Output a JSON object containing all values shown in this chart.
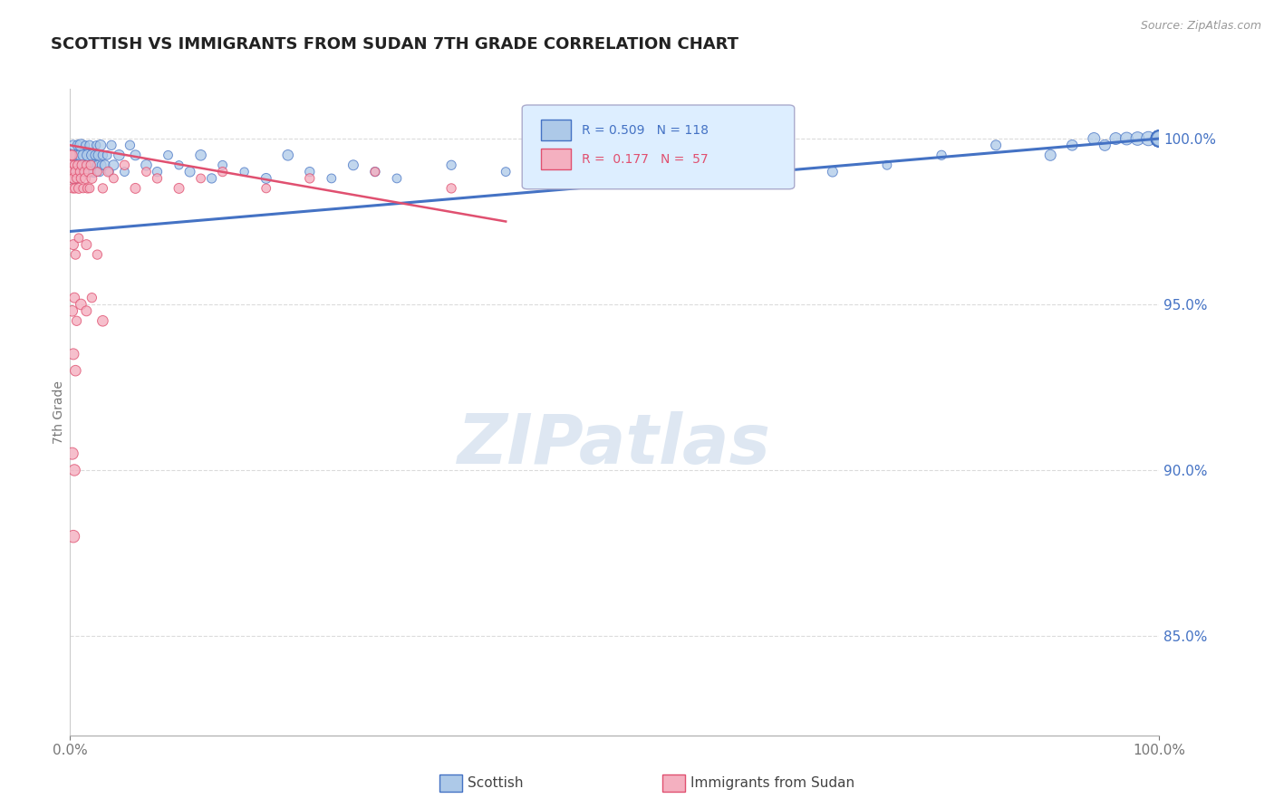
{
  "title": "SCOTTISH VS IMMIGRANTS FROM SUDAN 7TH GRADE CORRELATION CHART",
  "source_text": "Source: ZipAtlas.com",
  "ylabel": "7th Grade",
  "x_min": 0.0,
  "x_max": 100.0,
  "y_min": 82.0,
  "y_max": 101.5,
  "ytick_labels": [
    "85.0%",
    "90.0%",
    "95.0%",
    "100.0%"
  ],
  "ytick_values": [
    85.0,
    90.0,
    95.0,
    100.0
  ],
  "blue_series": {
    "name": "Scottish",
    "color": "#adc9e8",
    "edge_color": "#4472c4",
    "R": 0.509,
    "N": 118,
    "x": [
      0.1,
      0.2,
      0.3,
      0.4,
      0.5,
      0.6,
      0.7,
      0.8,
      0.9,
      1.0,
      1.1,
      1.2,
      1.3,
      1.4,
      1.5,
      1.6,
      1.7,
      1.8,
      1.9,
      2.0,
      2.1,
      2.2,
      2.3,
      2.4,
      2.5,
      2.6,
      2.7,
      2.8,
      2.9,
      3.0,
      3.2,
      3.4,
      3.6,
      3.8,
      4.0,
      4.5,
      5.0,
      5.5,
      6.0,
      7.0,
      8.0,
      9.0,
      10.0,
      11.0,
      12.0,
      13.0,
      14.0,
      16.0,
      18.0,
      20.0,
      22.0,
      24.0,
      26.0,
      28.0,
      30.0,
      35.0,
      40.0,
      45.0,
      50.0,
      55.0,
      60.0,
      65.0,
      70.0,
      75.0,
      80.0,
      85.0,
      90.0,
      92.0,
      94.0,
      95.0,
      96.0,
      97.0,
      98.0,
      99.0,
      100.0,
      100.0,
      100.0,
      100.0,
      100.0,
      100.0,
      100.0,
      100.0,
      100.0,
      100.0,
      100.0,
      100.0,
      100.0,
      100.0,
      100.0,
      100.0,
      100.0,
      100.0,
      100.0,
      100.0,
      100.0,
      100.0,
      100.0,
      100.0,
      100.0,
      100.0,
      100.0,
      100.0,
      100.0,
      100.0,
      100.0,
      100.0,
      100.0,
      100.0,
      100.0,
      100.0,
      100.0,
      100.0,
      100.0,
      100.0,
      100.0,
      100.0,
      100.0,
      100.0
    ],
    "y": [
      99.5,
      99.2,
      99.8,
      98.8,
      99.5,
      99.0,
      99.8,
      99.2,
      99.5,
      99.8,
      99.0,
      99.5,
      99.2,
      99.8,
      99.0,
      99.5,
      99.2,
      99.8,
      99.0,
      99.5,
      99.2,
      99.0,
      99.5,
      99.8,
      99.2,
      99.5,
      99.0,
      99.8,
      99.2,
      99.5,
      99.2,
      99.5,
      99.0,
      99.8,
      99.2,
      99.5,
      99.0,
      99.8,
      99.5,
      99.2,
      99.0,
      99.5,
      99.2,
      99.0,
      99.5,
      98.8,
      99.2,
      99.0,
      98.8,
      99.5,
      99.0,
      98.8,
      99.2,
      99.0,
      98.8,
      99.2,
      99.0,
      98.8,
      99.5,
      99.0,
      99.2,
      99.5,
      99.0,
      99.2,
      99.5,
      99.8,
      99.5,
      99.8,
      100.0,
      99.8,
      100.0,
      100.0,
      100.0,
      100.0,
      100.0,
      100.0,
      100.0,
      100.0,
      100.0,
      100.0,
      100.0,
      100.0,
      100.0,
      100.0,
      100.0,
      100.0,
      100.0,
      100.0,
      100.0,
      100.0,
      100.0,
      100.0,
      100.0,
      100.0,
      100.0,
      100.0,
      100.0,
      100.0,
      100.0,
      100.0,
      100.0,
      100.0,
      100.0,
      100.0,
      100.0,
      100.0,
      100.0,
      100.0,
      100.0,
      100.0,
      100.0,
      100.0,
      100.0,
      100.0,
      100.0,
      100.0,
      100.0,
      100.0
    ],
    "size": [
      30,
      28,
      25,
      32,
      22,
      20,
      25,
      30,
      28,
      35,
      22,
      28,
      20,
      18,
      25,
      30,
      20,
      22,
      25,
      28,
      25,
      30,
      22,
      18,
      20,
      25,
      22,
      28,
      20,
      22,
      25,
      20,
      18,
      22,
      25,
      28,
      20,
      22,
      25,
      28,
      22,
      20,
      18,
      25,
      28,
      22,
      20,
      18,
      25,
      28,
      22,
      20,
      25,
      22,
      20,
      22,
      20,
      18,
      22,
      20,
      18,
      22,
      25,
      20,
      22,
      25,
      30,
      28,
      35,
      30,
      35,
      40,
      45,
      50,
      60,
      60,
      65,
      65,
      65,
      70,
      70,
      65,
      65,
      60,
      65,
      70,
      65,
      70,
      65,
      70,
      75,
      65,
      60,
      65,
      60,
      65,
      60,
      65,
      60,
      65,
      60,
      65,
      60,
      65,
      60,
      65,
      60,
      55,
      60,
      55,
      60,
      55,
      60,
      55,
      60,
      55,
      60,
      55
    ]
  },
  "pink_series": {
    "name": "Immigrants from Sudan",
    "color": "#f4b0c0",
    "edge_color": "#e05070",
    "R": 0.177,
    "N": 57,
    "x": [
      0.05,
      0.1,
      0.15,
      0.2,
      0.25,
      0.3,
      0.35,
      0.4,
      0.45,
      0.5,
      0.6,
      0.7,
      0.8,
      0.9,
      1.0,
      1.1,
      1.2,
      1.3,
      1.4,
      1.5,
      1.6,
      1.7,
      1.8,
      1.9,
      2.0,
      2.5,
      3.0,
      3.5,
      4.0,
      5.0,
      6.0,
      7.0,
      8.0,
      10.0,
      12.0,
      14.0,
      18.0,
      22.0,
      28.0,
      35.0,
      0.3,
      0.5,
      0.8,
      1.5,
      2.5,
      0.2,
      0.4,
      0.6,
      1.0,
      1.5,
      2.0,
      3.0,
      0.3,
      0.5,
      0.2,
      0.4,
      0.3
    ],
    "y": [
      99.5,
      99.2,
      98.8,
      99.5,
      98.5,
      99.0,
      98.8,
      99.2,
      98.5,
      99.0,
      98.8,
      99.2,
      98.5,
      99.0,
      98.8,
      99.2,
      98.5,
      99.0,
      98.8,
      99.2,
      98.5,
      99.0,
      98.5,
      99.2,
      98.8,
      99.0,
      98.5,
      99.0,
      98.8,
      99.2,
      98.5,
      99.0,
      98.8,
      98.5,
      98.8,
      99.0,
      98.5,
      98.8,
      99.0,
      98.5,
      96.8,
      96.5,
      97.0,
      96.8,
      96.5,
      94.8,
      95.2,
      94.5,
      95.0,
      94.8,
      95.2,
      94.5,
      93.5,
      93.0,
      90.5,
      90.0,
      88.0
    ],
    "size": [
      25,
      22,
      20,
      25,
      22,
      30,
      28,
      20,
      22,
      25,
      20,
      22,
      25,
      20,
      22,
      25,
      20,
      22,
      25,
      20,
      22,
      25,
      20,
      22,
      25,
      20,
      22,
      25,
      20,
      22,
      25,
      20,
      22,
      25,
      20,
      22,
      20,
      22,
      20,
      22,
      25,
      22,
      20,
      25,
      22,
      28,
      25,
      22,
      28,
      25,
      22,
      28,
      30,
      28,
      35,
      32,
      38
    ]
  },
  "blue_line": {
    "x0": 0.0,
    "y0": 97.2,
    "x1": 100.0,
    "y1": 100.0
  },
  "pink_line": {
    "x0": 0.0,
    "y0": 99.8,
    "x1": 40.0,
    "y1": 97.5
  },
  "watermark": "ZIPatlas",
  "watermark_color": "#c8d8ea",
  "legend_R_blue": "R = 0.509",
  "legend_N_blue": "N = 118",
  "legend_R_pink": "R =  0.177",
  "legend_N_pink": "N =  57",
  "title_fontsize": 13,
  "tick_label_color_right": "#4472c4",
  "grid_color": "#cccccc",
  "background_color": "#ffffff"
}
